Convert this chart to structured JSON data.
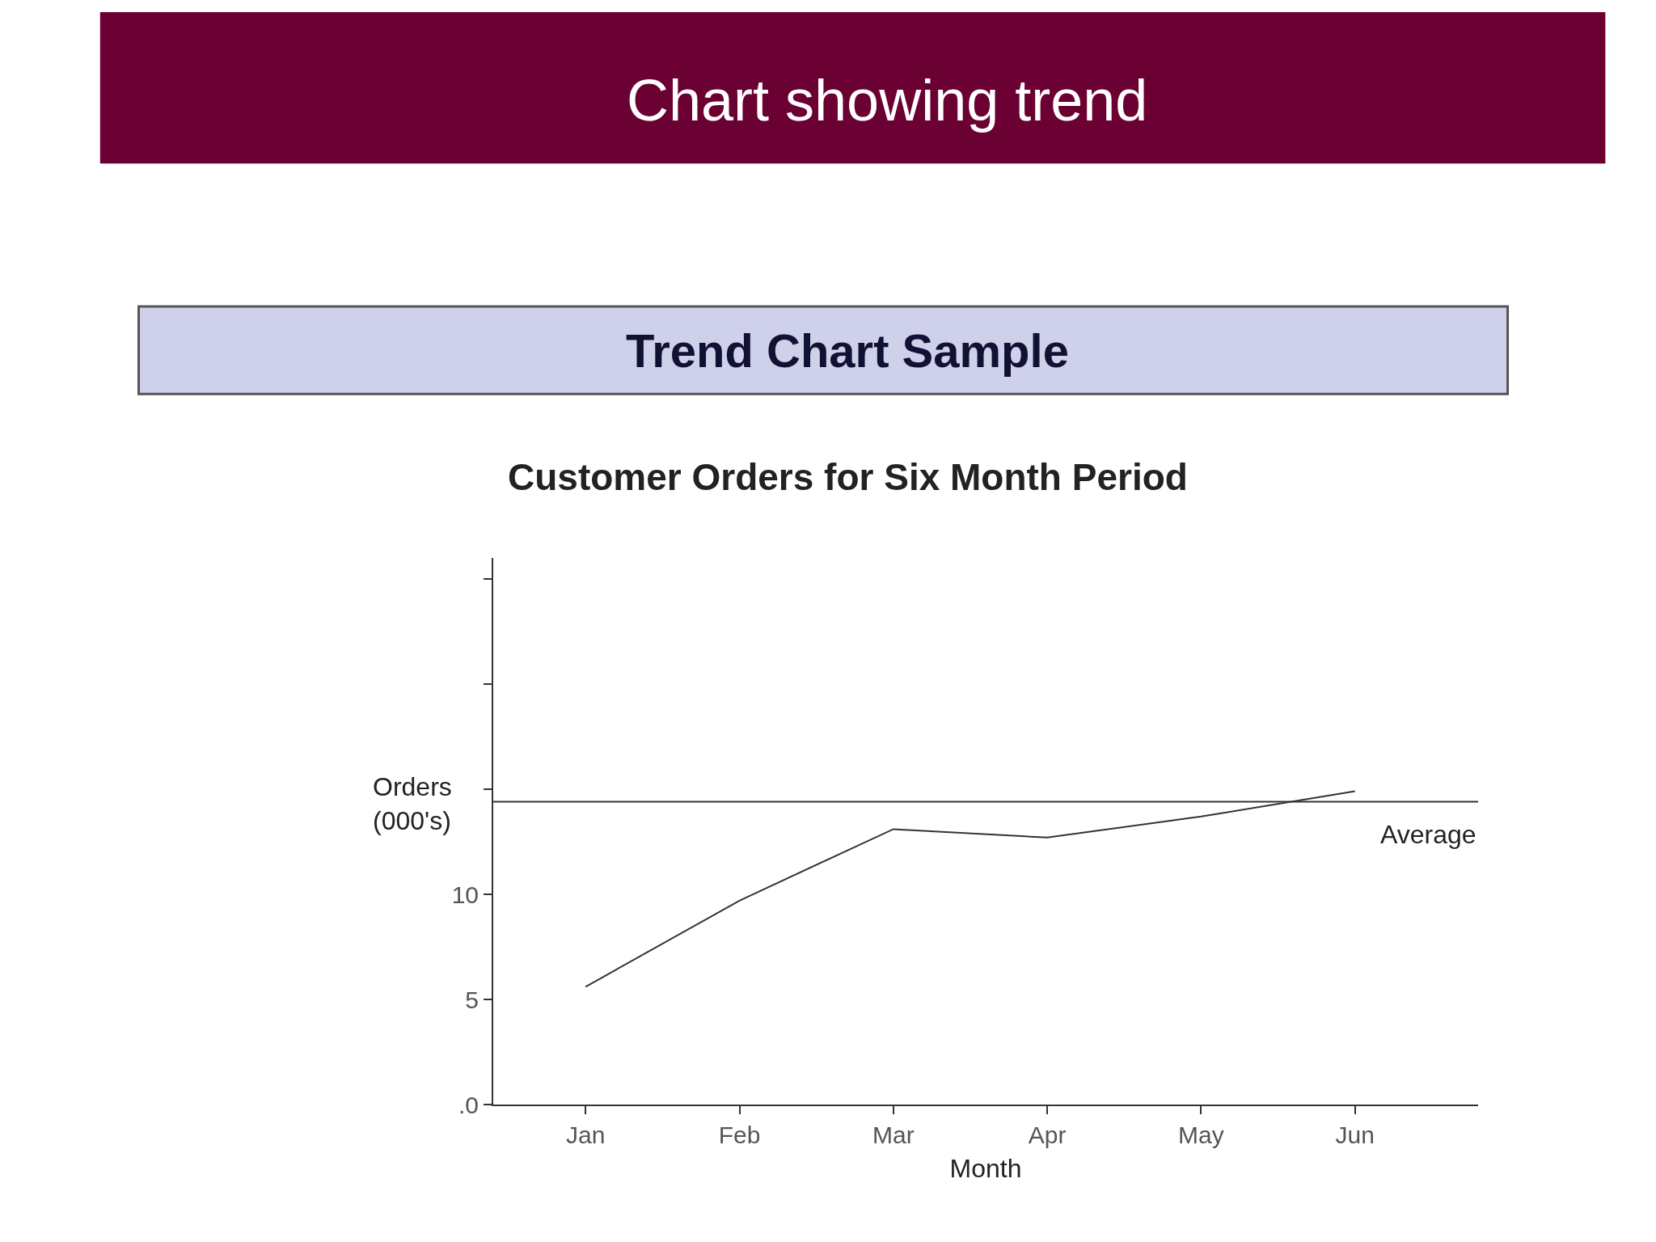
{
  "chart_data": {
    "type": "line",
    "title": "Trend Chart Sample",
    "subtitle": "Customer Orders for Six Month Period",
    "annotations": [
      "Chart showing trend"
    ],
    "xlabel": "Month",
    "ylabel": "Orders (000's)",
    "categories": [
      "Jan",
      "Feb",
      "Mar",
      "Apr",
      "May",
      "Jun"
    ],
    "series": [
      {
        "color": "#333333",
        "values": [
          5.6,
          9.7,
          13.1,
          12.7,
          13.7,
          14.9
        ]
      }
    ],
    "ylim": [
      0,
      26
    ],
    "yticks": [
      {
        "value": 0,
        "label": ".0"
      },
      5,
      10,
      {
        "value": 15,
        "label": null
      },
      {
        "value": 20,
        "label": null
      },
      {
        "value": 25,
        "label": null
      }
    ],
    "ref_lines": [
      {
        "axis": "y",
        "value": 14.4,
        "label": "Average",
        "color": "#333333"
      }
    ],
    "legend": false,
    "marker": "none",
    "line_style": "solid"
  }
}
